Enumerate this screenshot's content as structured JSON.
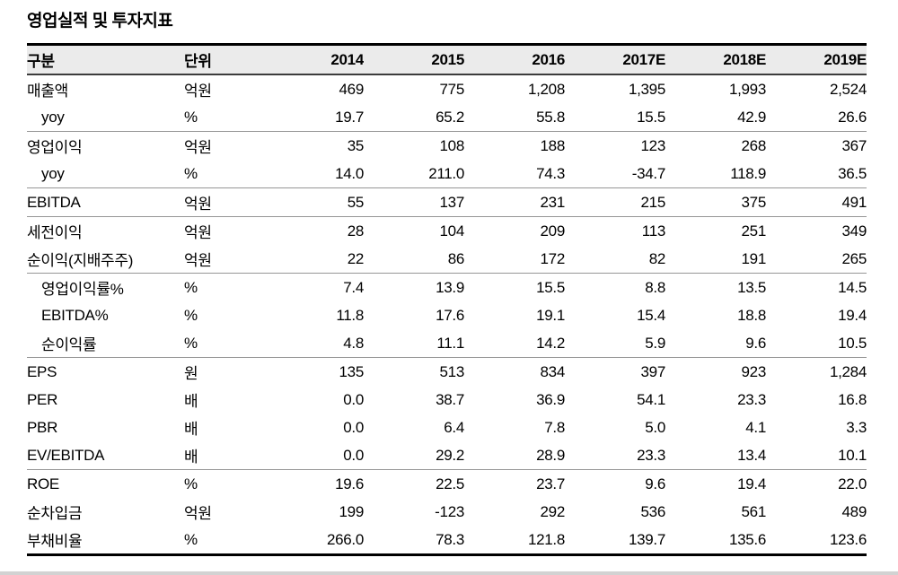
{
  "title": "영업실적 및 투자지표",
  "table": {
    "columns": [
      "구분",
      "단위",
      "2014",
      "2015",
      "2016",
      "2017E",
      "2018E",
      "2019E"
    ],
    "rows": [
      {
        "label": "매출액",
        "unit": "억원",
        "values": [
          "469",
          "775",
          "1,208",
          "1,395",
          "1,993",
          "2,524"
        ],
        "indent": false,
        "separator": false
      },
      {
        "label": "yoy",
        "unit": "%",
        "values": [
          "19.7",
          "65.2",
          "55.8",
          "15.5",
          "42.9",
          "26.6"
        ],
        "indent": true,
        "separator": false
      },
      {
        "label": "영업이익",
        "unit": "억원",
        "values": [
          "35",
          "108",
          "188",
          "123",
          "268",
          "367"
        ],
        "indent": false,
        "separator": true
      },
      {
        "label": "yoy",
        "unit": "%",
        "values": [
          "14.0",
          "211.0",
          "74.3",
          "-34.7",
          "118.9",
          "36.5"
        ],
        "indent": true,
        "separator": false
      },
      {
        "label": "EBITDA",
        "unit": "억원",
        "values": [
          "55",
          "137",
          "231",
          "215",
          "375",
          "491"
        ],
        "indent": false,
        "separator": true
      },
      {
        "label": "세전이익",
        "unit": "억원",
        "values": [
          "28",
          "104",
          "209",
          "113",
          "251",
          "349"
        ],
        "indent": false,
        "separator": true
      },
      {
        "label": "순이익(지배주주)",
        "unit": "억원",
        "values": [
          "22",
          "86",
          "172",
          "82",
          "191",
          "265"
        ],
        "indent": false,
        "separator": false
      },
      {
        "label": "영업이익률%",
        "unit": "%",
        "values": [
          "7.4",
          "13.9",
          "15.5",
          "8.8",
          "13.5",
          "14.5"
        ],
        "indent": true,
        "separator": true
      },
      {
        "label": "EBITDA%",
        "unit": "%",
        "values": [
          "11.8",
          "17.6",
          "19.1",
          "15.4",
          "18.8",
          "19.4"
        ],
        "indent": true,
        "separator": false
      },
      {
        "label": "순이익률",
        "unit": "%",
        "values": [
          "4.8",
          "11.1",
          "14.2",
          "5.9",
          "9.6",
          "10.5"
        ],
        "indent": true,
        "separator": false
      },
      {
        "label": "EPS",
        "unit": "원",
        "values": [
          "135",
          "513",
          "834",
          "397",
          "923",
          "1,284"
        ],
        "indent": false,
        "separator": true
      },
      {
        "label": "PER",
        "unit": "배",
        "values": [
          "0.0",
          "38.7",
          "36.9",
          "54.1",
          "23.3",
          "16.8"
        ],
        "indent": false,
        "separator": false
      },
      {
        "label": "PBR",
        "unit": "배",
        "values": [
          "0.0",
          "6.4",
          "7.8",
          "5.0",
          "4.1",
          "3.3"
        ],
        "indent": false,
        "separator": false
      },
      {
        "label": "EV/EBITDA",
        "unit": "배",
        "values": [
          "0.0",
          "29.2",
          "28.9",
          "23.3",
          "13.4",
          "10.1"
        ],
        "indent": false,
        "separator": false
      },
      {
        "label": "ROE",
        "unit": "%",
        "values": [
          "19.6",
          "22.5",
          "23.7",
          "9.6",
          "19.4",
          "22.0"
        ],
        "indent": false,
        "separator": true
      },
      {
        "label": "순차입금",
        "unit": "억원",
        "values": [
          "199",
          "-123",
          "292",
          "536",
          "561",
          "489"
        ],
        "indent": false,
        "separator": false
      },
      {
        "label": "부채비율",
        "unit": "%",
        "values": [
          "266.0",
          "78.3",
          "121.8",
          "139.7",
          "135.6",
          "123.6"
        ],
        "indent": false,
        "separator": false
      }
    ]
  },
  "colors": {
    "header_bg": "#ebebeb",
    "border_heavy": "#000000",
    "border_header": "#3c3c3c",
    "border_group": "#969696",
    "bottom_strip": "#d2d2d2"
  }
}
